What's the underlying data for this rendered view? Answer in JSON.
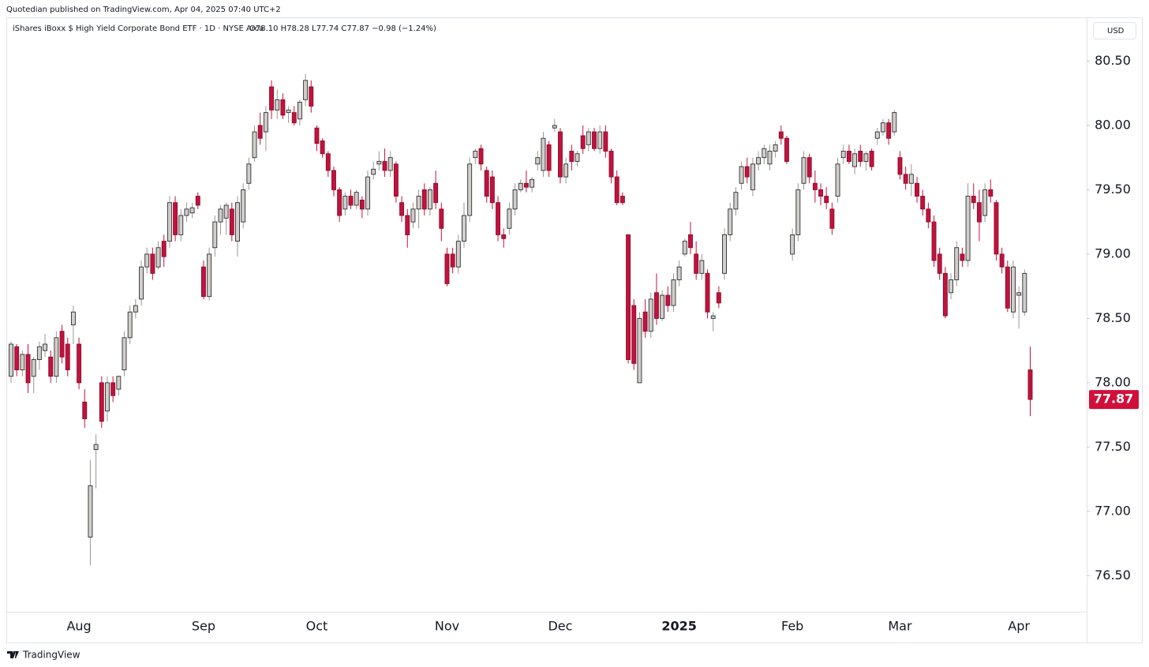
{
  "publisher": "Quotedian published on TradingView.com, Apr 04, 2025 07:40 UTC+2",
  "footer": "TradingView",
  "chart_data": {
    "type": "candlestick",
    "title": "iShares iBoxx $ High Yield Corporate Bond ETF · 1D · NYSE Arca",
    "ohlc_text": "O78.10 H78.28 L77.74 C77.87 −0.98 (−1.24%)",
    "currency": "USD",
    "up_color": "#d3cfc8",
    "down_color": "#c2123d",
    "border_color": "#2a2e39",
    "last_price_color": "#d0103a",
    "ylim": [
      76.22,
      80.84
    ],
    "yticks": [
      {
        "value": 76.5,
        "label": "76.50"
      },
      {
        "value": 77,
        "label": "77.00"
      },
      {
        "value": 77.5,
        "label": "77.50"
      },
      {
        "value": 78,
        "label": "78.00"
      },
      {
        "value": 78.5,
        "label": "78.50"
      },
      {
        "value": 79,
        "label": "79.00"
      },
      {
        "value": 79.5,
        "label": "79.50"
      },
      {
        "value": 80,
        "label": "80.00"
      },
      {
        "value": 80.5,
        "label": "80.50"
      }
    ],
    "categories": [
      null,
      null,
      null,
      null,
      null,
      null,
      null,
      null,
      null,
      null,
      null,
      null,
      "Aug",
      null,
      null,
      null,
      null,
      null,
      null,
      null,
      null,
      null,
      null,
      null,
      null,
      null,
      null,
      null,
      null,
      null,
      null,
      null,
      null,
      null,
      "Sep",
      null,
      null,
      null,
      null,
      null,
      null,
      null,
      null,
      null,
      null,
      null,
      null,
      null,
      null,
      null,
      null,
      null,
      null,
      null,
      "Oct",
      null,
      null,
      null,
      null,
      null,
      null,
      null,
      null,
      null,
      null,
      null,
      null,
      null,
      null,
      null,
      null,
      null,
      null,
      null,
      null,
      null,
      null,
      "Nov",
      null,
      null,
      null,
      null,
      null,
      null,
      null,
      null,
      null,
      null,
      null,
      null,
      null,
      null,
      null,
      null,
      null,
      null,
      null,
      "Dec",
      null,
      null,
      null,
      null,
      null,
      null,
      null,
      null,
      null,
      null,
      null,
      null,
      null,
      null,
      null,
      null,
      null,
      null,
      null,
      null,
      "2025",
      null,
      null,
      null,
      null,
      null,
      null,
      null,
      null,
      null,
      null,
      null,
      null,
      null,
      null,
      null,
      null,
      null,
      null,
      null,
      "Feb",
      null,
      null,
      null,
      null,
      null,
      null,
      null,
      null,
      null,
      null,
      null,
      null,
      null,
      null,
      null,
      null,
      null,
      null,
      "Mar",
      null,
      null,
      null,
      null,
      null,
      null,
      null,
      null,
      null,
      null,
      null,
      null,
      null,
      null,
      null,
      null,
      null,
      null,
      null,
      null,
      "Apr",
      null,
      null
    ],
    "candles": [
      [
        78.05,
        78.32,
        78.0,
        78.3
      ],
      [
        78.28,
        78.3,
        78.05,
        78.1
      ],
      [
        78.1,
        78.25,
        78.05,
        78.22
      ],
      [
        78.22,
        78.3,
        77.92,
        78.0
      ],
      [
        78.05,
        78.2,
        77.92,
        78.18
      ],
      [
        78.18,
        78.32,
        78.1,
        78.28
      ],
      [
        78.25,
        78.38,
        78.2,
        78.3
      ],
      [
        78.2,
        78.25,
        78.0,
        78.05
      ],
      [
        78.05,
        78.4,
        78.0,
        78.35
      ],
      [
        78.4,
        78.45,
        78.15,
        78.2
      ],
      [
        78.3,
        78.35,
        78.05,
        78.1
      ],
      [
        78.45,
        78.6,
        78.3,
        78.55
      ],
      [
        78.3,
        78.35,
        77.95,
        78.0
      ],
      [
        77.85,
        77.95,
        77.65,
        77.72
      ],
      [
        76.8,
        77.4,
        76.58,
        77.2
      ],
      [
        77.48,
        77.6,
        77.18,
        77.52
      ],
      [
        78.0,
        78.05,
        77.65,
        77.7
      ],
      [
        77.78,
        78.05,
        77.7,
        78.0
      ],
      [
        78.0,
        78.05,
        77.85,
        77.9
      ],
      [
        77.95,
        78.05,
        77.9,
        78.05
      ],
      [
        78.1,
        78.4,
        78.05,
        78.35
      ],
      [
        78.35,
        78.6,
        78.3,
        78.55
      ],
      [
        78.55,
        78.65,
        78.5,
        78.6
      ],
      [
        78.65,
        78.95,
        78.6,
        78.9
      ],
      [
        78.9,
        79.05,
        78.85,
        79.0
      ],
      [
        79.0,
        79.05,
        78.8,
        78.85
      ],
      [
        78.9,
        79.1,
        78.88,
        79.05
      ],
      [
        79.1,
        79.15,
        78.9,
        78.98
      ],
      [
        79.1,
        79.45,
        79.05,
        79.4
      ],
      [
        79.4,
        79.45,
        79.1,
        79.15
      ],
      [
        79.15,
        79.35,
        79.1,
        79.3
      ],
      [
        79.3,
        79.4,
        79.25,
        79.35
      ],
      [
        79.32,
        79.4,
        79.28,
        79.36
      ],
      [
        79.45,
        79.48,
        79.35,
        79.38
      ],
      [
        78.9,
        78.95,
        78.65,
        78.67
      ],
      [
        78.67,
        79.05,
        78.64,
        79.0
      ],
      [
        79.05,
        79.3,
        78.98,
        79.25
      ],
      [
        79.25,
        79.38,
        79.15,
        79.35
      ],
      [
        79.28,
        79.4,
        79.15,
        79.38
      ],
      [
        79.35,
        79.4,
        79.1,
        79.15
      ],
      [
        79.1,
        79.45,
        78.98,
        79.4
      ],
      [
        79.25,
        79.55,
        79.2,
        79.5
      ],
      [
        79.55,
        79.75,
        79.5,
        79.7
      ],
      [
        79.75,
        80.0,
        79.72,
        79.95
      ],
      [
        80.0,
        80.1,
        79.85,
        79.9
      ],
      [
        79.95,
        80.15,
        79.8,
        80.1
      ],
      [
        80.3,
        80.35,
        80.05,
        80.12
      ],
      [
        80.12,
        80.28,
        80.05,
        80.2
      ],
      [
        80.2,
        80.25,
        80.05,
        80.08
      ],
      [
        80.1,
        80.15,
        80.02,
        80.12
      ],
      [
        80.1,
        80.15,
        80.0,
        80.02
      ],
      [
        80.05,
        80.2,
        80.0,
        80.18
      ],
      [
        80.2,
        80.4,
        80.15,
        80.35
      ],
      [
        80.3,
        80.35,
        80.1,
        80.15
      ],
      [
        79.98,
        80.0,
        79.8,
        79.86
      ],
      [
        79.88,
        79.9,
        79.75,
        79.78
      ],
      [
        79.78,
        79.8,
        79.6,
        79.65
      ],
      [
        79.65,
        79.68,
        79.45,
        79.5
      ],
      [
        79.5,
        79.52,
        79.25,
        79.3
      ],
      [
        79.35,
        79.48,
        79.3,
        79.45
      ],
      [
        79.45,
        79.5,
        79.35,
        79.38
      ],
      [
        79.38,
        79.5,
        79.35,
        79.48
      ],
      [
        79.42,
        79.45,
        79.28,
        79.35
      ],
      [
        79.35,
        79.65,
        79.3,
        79.6
      ],
      [
        79.62,
        79.72,
        79.58,
        79.66
      ],
      [
        79.7,
        79.8,
        79.65,
        79.72
      ],
      [
        79.72,
        79.82,
        79.6,
        79.65
      ],
      [
        79.65,
        79.8,
        79.6,
        79.75
      ],
      [
        79.7,
        79.72,
        79.4,
        79.45
      ],
      [
        79.4,
        79.45,
        79.25,
        79.3
      ],
      [
        79.3,
        79.35,
        79.05,
        79.15
      ],
      [
        79.25,
        79.4,
        79.2,
        79.35
      ],
      [
        79.35,
        79.5,
        79.2,
        79.45
      ],
      [
        79.5,
        79.55,
        79.3,
        79.35
      ],
      [
        79.35,
        79.52,
        79.3,
        79.5
      ],
      [
        79.55,
        79.65,
        79.35,
        79.4
      ],
      [
        79.35,
        79.4,
        79.1,
        79.2
      ],
      [
        79.0,
        79.05,
        78.75,
        78.77
      ],
      [
        79.0,
        79.05,
        78.85,
        78.9
      ],
      [
        78.9,
        79.15,
        78.85,
        79.1
      ],
      [
        79.1,
        79.4,
        79.05,
        79.3
      ],
      [
        79.3,
        79.75,
        79.25,
        79.7
      ],
      [
        79.75,
        79.82,
        79.7,
        79.8
      ],
      [
        79.82,
        79.85,
        79.65,
        79.7
      ],
      [
        79.65,
        79.68,
        79.4,
        79.45
      ],
      [
        79.6,
        79.65,
        79.35,
        79.4
      ],
      [
        79.4,
        79.45,
        79.1,
        79.15
      ],
      [
        79.15,
        79.2,
        79.05,
        79.12
      ],
      [
        79.2,
        79.4,
        79.15,
        79.35
      ],
      [
        79.35,
        79.55,
        79.3,
        79.5
      ],
      [
        79.5,
        79.58,
        79.48,
        79.55
      ],
      [
        79.55,
        79.65,
        79.48,
        79.52
      ],
      [
        79.52,
        79.6,
        79.48,
        79.58
      ],
      [
        79.7,
        79.8,
        79.65,
        79.75
      ],
      [
        79.65,
        79.95,
        79.6,
        79.9
      ],
      [
        79.85,
        79.88,
        79.6,
        79.65
      ],
      [
        79.98,
        80.05,
        79.95,
        80.0
      ],
      [
        79.95,
        79.98,
        79.55,
        79.6
      ],
      [
        79.6,
        79.75,
        79.55,
        79.7
      ],
      [
        79.8,
        79.85,
        79.65,
        79.72
      ],
      [
        79.72,
        79.8,
        79.68,
        79.78
      ],
      [
        79.92,
        80.0,
        79.78,
        79.82
      ],
      [
        79.85,
        79.98,
        79.8,
        79.95
      ],
      [
        79.95,
        79.98,
        79.8,
        79.82
      ],
      [
        79.82,
        80.0,
        79.78,
        79.95
      ],
      [
        79.95,
        80.0,
        79.75,
        79.8
      ],
      [
        79.8,
        79.82,
        79.55,
        79.6
      ],
      [
        79.6,
        79.65,
        79.38,
        79.4
      ],
      [
        79.45,
        79.48,
        79.38,
        79.4
      ],
      [
        79.15,
        79.15,
        78.15,
        78.18
      ],
      [
        78.6,
        78.65,
        78.1,
        78.15
      ],
      [
        78.0,
        78.55,
        78.0,
        78.5
      ],
      [
        78.55,
        78.65,
        78.35,
        78.4
      ],
      [
        78.4,
        78.7,
        78.35,
        78.65
      ],
      [
        78.7,
        78.85,
        78.45,
        78.5
      ],
      [
        78.5,
        78.72,
        78.48,
        78.68
      ],
      [
        78.68,
        78.75,
        78.55,
        78.6
      ],
      [
        78.6,
        78.85,
        78.55,
        78.8
      ],
      [
        78.8,
        78.95,
        78.75,
        78.9
      ],
      [
        79.0,
        79.12,
        78.98,
        79.1
      ],
      [
        79.15,
        79.25,
        79.0,
        79.05
      ],
      [
        79.0,
        79.1,
        78.8,
        78.85
      ],
      [
        78.85,
        79.0,
        78.8,
        78.95
      ],
      [
        78.85,
        78.88,
        78.5,
        78.55
      ],
      [
        78.5,
        78.55,
        78.4,
        78.52
      ],
      [
        78.7,
        78.75,
        78.58,
        78.62
      ],
      [
        78.85,
        79.2,
        78.8,
        79.15
      ],
      [
        79.15,
        79.4,
        79.1,
        79.35
      ],
      [
        79.35,
        79.52,
        79.3,
        79.48
      ],
      [
        79.55,
        79.72,
        79.5,
        79.68
      ],
      [
        79.68,
        79.75,
        79.55,
        79.6
      ],
      [
        79.5,
        79.75,
        79.45,
        79.7
      ],
      [
        79.7,
        79.8,
        79.65,
        79.75
      ],
      [
        79.75,
        79.85,
        79.7,
        79.82
      ],
      [
        79.7,
        79.85,
        79.65,
        79.8
      ],
      [
        79.8,
        79.88,
        79.75,
        79.85
      ],
      [
        79.95,
        80.0,
        79.85,
        79.9
      ],
      [
        79.9,
        79.92,
        79.7,
        79.72
      ],
      [
        79.0,
        79.2,
        78.95,
        79.15
      ],
      [
        79.15,
        79.55,
        79.1,
        79.5
      ],
      [
        79.55,
        79.8,
        79.5,
        79.75
      ],
      [
        79.75,
        79.78,
        79.55,
        79.6
      ],
      [
        79.55,
        79.65,
        79.4,
        79.5
      ],
      [
        79.5,
        79.55,
        79.38,
        79.45
      ],
      [
        79.45,
        79.52,
        79.35,
        79.4
      ],
      [
        79.35,
        79.4,
        79.15,
        79.2
      ],
      [
        79.45,
        79.75,
        79.4,
        79.7
      ],
      [
        79.75,
        79.85,
        79.7,
        79.8
      ],
      [
        79.8,
        79.85,
        79.7,
        79.72
      ],
      [
        79.68,
        79.82,
        79.62,
        79.78
      ],
      [
        79.8,
        79.85,
        79.68,
        79.72
      ],
      [
        79.72,
        79.8,
        79.65,
        79.78
      ],
      [
        79.8,
        79.82,
        79.65,
        79.68
      ],
      [
        79.9,
        79.98,
        79.85,
        79.95
      ],
      [
        79.95,
        80.05,
        79.92,
        80.02
      ],
      [
        80.02,
        80.05,
        79.85,
        79.9
      ],
      [
        79.95,
        80.12,
        79.92,
        80.1
      ],
      [
        79.75,
        79.8,
        79.58,
        79.62
      ],
      [
        79.62,
        79.68,
        79.5,
        79.55
      ],
      [
        79.55,
        79.7,
        79.45,
        79.62
      ],
      [
        79.55,
        79.6,
        79.4,
        79.45
      ],
      [
        79.45,
        79.5,
        79.3,
        79.35
      ],
      [
        79.35,
        79.4,
        79.2,
        79.25
      ],
      [
        79.25,
        79.3,
        78.9,
        78.95
      ],
      [
        79.0,
        79.05,
        78.8,
        78.85
      ],
      [
        78.85,
        78.9,
        78.5,
        78.52
      ],
      [
        78.7,
        78.85,
        78.65,
        78.8
      ],
      [
        78.8,
        79.1,
        78.75,
        79.05
      ],
      [
        79.0,
        79.05,
        78.9,
        78.95
      ],
      [
        78.95,
        79.55,
        78.9,
        79.45
      ],
      [
        79.45,
        79.55,
        79.35,
        79.4
      ],
      [
        79.4,
        79.5,
        79.1,
        79.25
      ],
      [
        79.3,
        79.55,
        79.25,
        79.5
      ],
      [
        79.5,
        79.58,
        79.4,
        79.45
      ],
      [
        79.4,
        79.42,
        78.95,
        79.0
      ],
      [
        79.0,
        79.05,
        78.85,
        78.9
      ],
      [
        78.9,
        78.95,
        78.55,
        78.58
      ],
      [
        78.55,
        78.95,
        78.5,
        78.9
      ],
      [
        78.68,
        78.75,
        78.42,
        78.7
      ],
      [
        78.55,
        78.88,
        78.52,
        78.85
      ],
      [
        78.1,
        78.28,
        77.74,
        77.87
      ]
    ]
  }
}
